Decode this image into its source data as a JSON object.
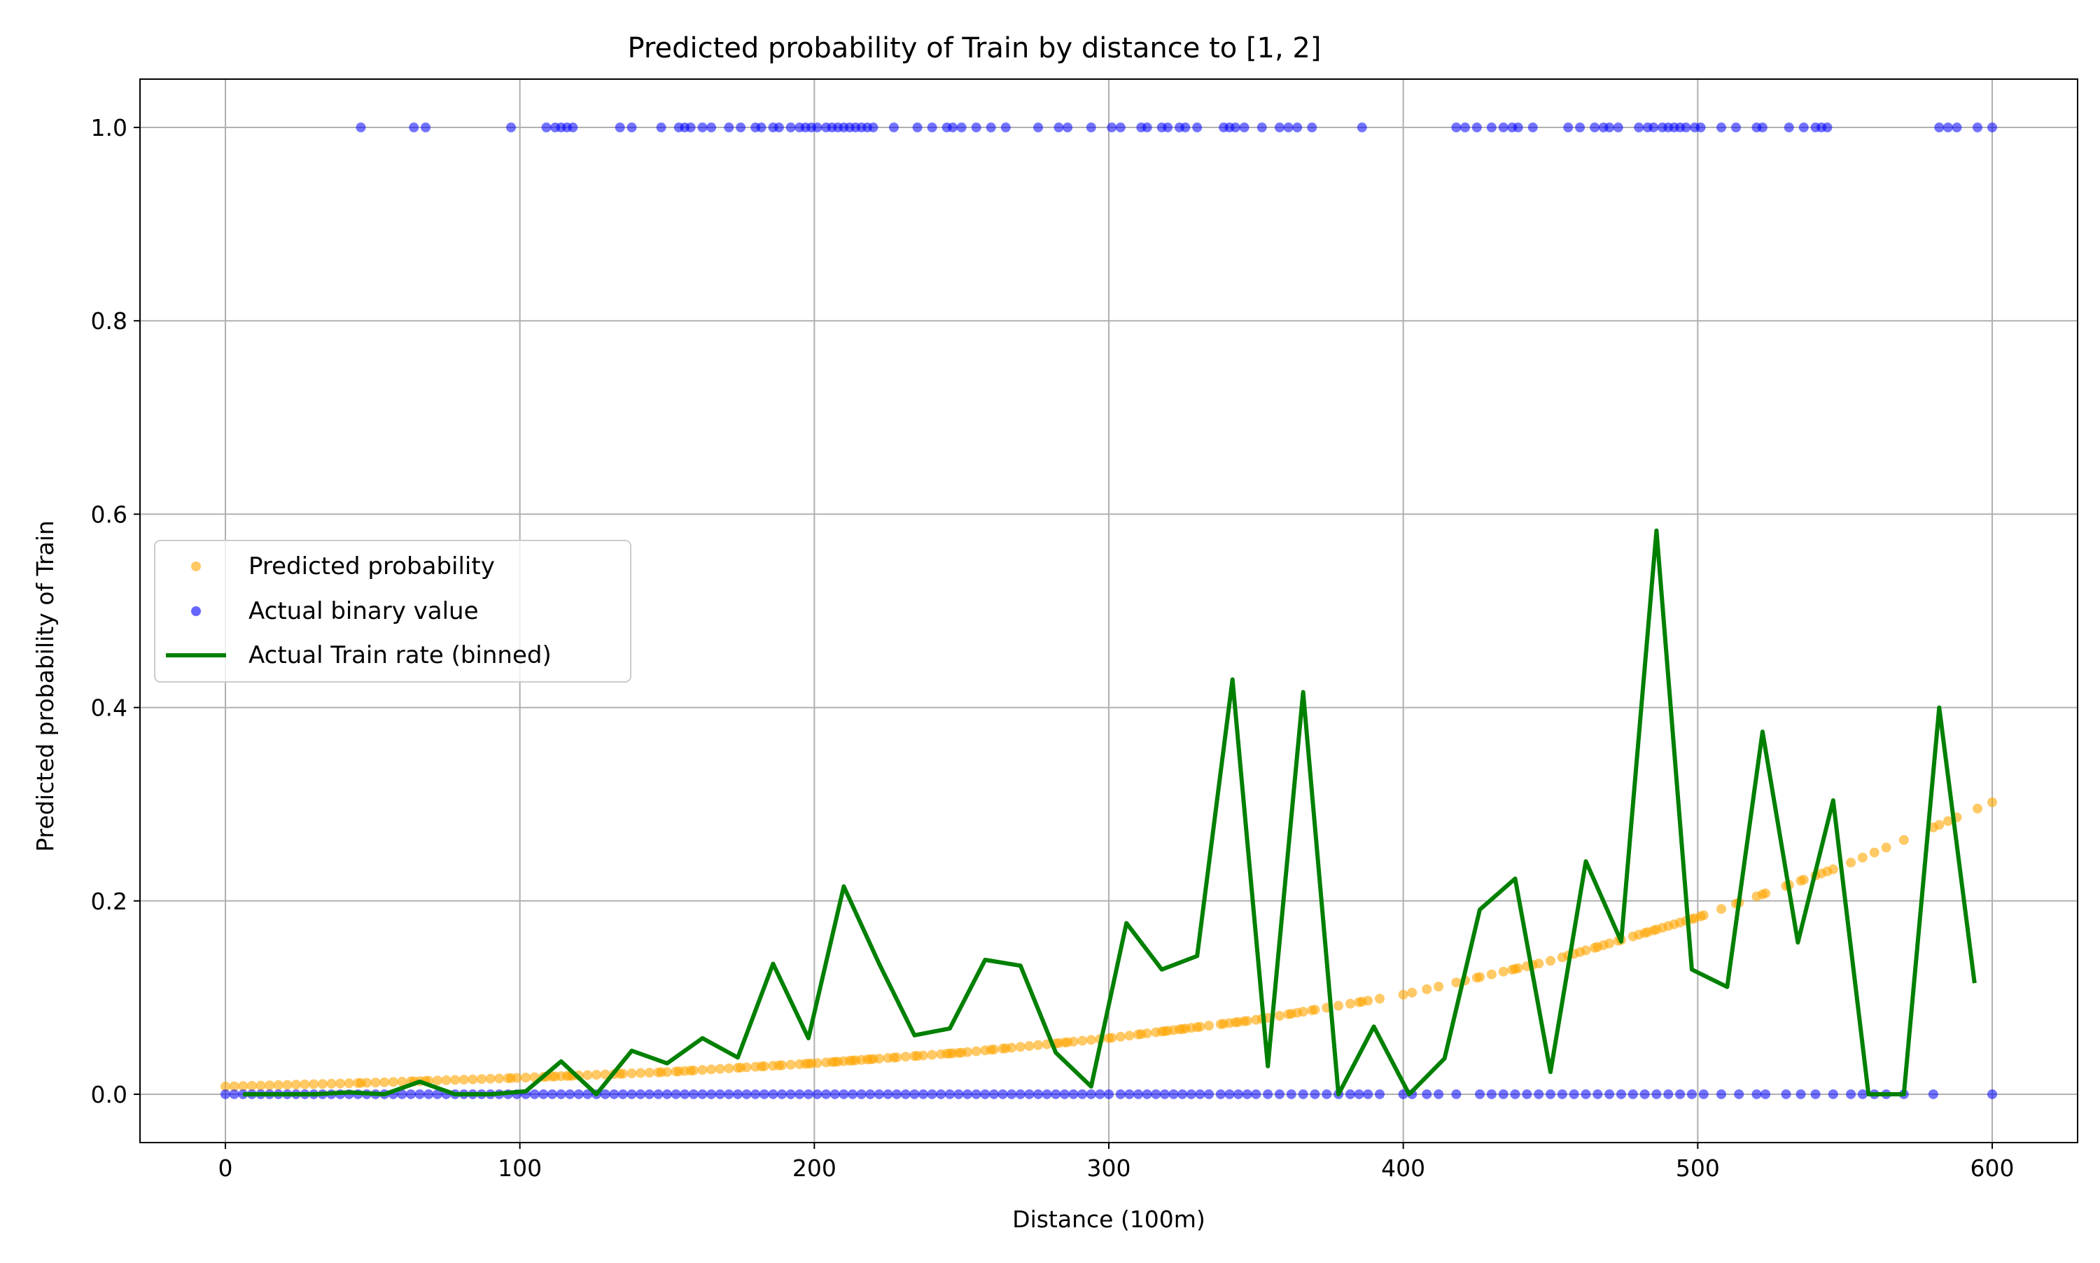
{
  "chart_data": {
    "type": "scatter",
    "title": "Predicted probability of Train by distance to [1, 2]",
    "xlabel": "Distance (100m)",
    "ylabel": "Predicted probability of Train",
    "xlim": [
      -29,
      629
    ],
    "ylim": [
      -0.05,
      1.05
    ],
    "xticks": [
      0,
      100,
      200,
      300,
      400,
      500,
      600
    ],
    "yticks": [
      0.0,
      0.2,
      0.4,
      0.6,
      0.8,
      1.0
    ],
    "xtick_labels": [
      "0",
      "100",
      "200",
      "300",
      "400",
      "500",
      "600"
    ],
    "ytick_labels": [
      "0.0",
      "0.2",
      "0.4",
      "0.6",
      "0.8",
      "1.0"
    ],
    "grid": true,
    "legend_position": "center-left",
    "legend": [
      "Predicted probability",
      "Actual binary value",
      "Actual Train rate (binned)"
    ],
    "colors": {
      "predicted": "#ffa500",
      "actual": "#0000ff",
      "binned": "#008000",
      "grid": "#b0b0b0",
      "axes": "#000000"
    },
    "predicted_curve": {
      "name": "Predicted probability",
      "x": [
        0,
        50,
        100,
        150,
        200,
        250,
        300,
        350,
        400,
        450,
        500,
        550,
        600
      ],
      "y": [
        0.008,
        0.012,
        0.017,
        0.023,
        0.032,
        0.043,
        0.058,
        0.077,
        0.103,
        0.138,
        0.183,
        0.237,
        0.302
      ]
    },
    "actual_positive_x": [
      46,
      64,
      68,
      97,
      109,
      112,
      114,
      116,
      118,
      134,
      138,
      148,
      154,
      156,
      158,
      162,
      165,
      171,
      175,
      180,
      182,
      186,
      188,
      192,
      195,
      197,
      199,
      201,
      204,
      206,
      208,
      210,
      212,
      214,
      216,
      218,
      220,
      227,
      235,
      240,
      245,
      247,
      250,
      255,
      260,
      265,
      276,
      283,
      286,
      294,
      301,
      304,
      311,
      313,
      318,
      320,
      324,
      326,
      330,
      339,
      341,
      343,
      346,
      352,
      358,
      361,
      364,
      369,
      386,
      418,
      421,
      425,
      430,
      434,
      437,
      439,
      444,
      456,
      460,
      465,
      468,
      470,
      473,
      480,
      483,
      485,
      488,
      490,
      492,
      494,
      496,
      499,
      501,
      508,
      513,
      520,
      522,
      531,
      536,
      540,
      542,
      544,
      582,
      585,
      588,
      595,
      600
    ],
    "actual_negative_x": [
      0,
      3,
      6,
      9,
      12,
      15,
      18,
      21,
      24,
      27,
      30,
      33,
      36,
      39,
      42,
      45,
      48,
      51,
      54,
      57,
      60,
      63,
      66,
      69,
      72,
      75,
      78,
      81,
      84,
      87,
      90,
      93,
      96,
      99,
      102,
      105,
      108,
      111,
      114,
      117,
      120,
      123,
      126,
      129,
      132,
      135,
      138,
      141,
      144,
      147,
      150,
      153,
      156,
      159,
      162,
      165,
      168,
      171,
      174,
      177,
      180,
      183,
      186,
      189,
      192,
      195,
      198,
      201,
      204,
      207,
      210,
      213,
      216,
      219,
      222,
      225,
      228,
      231,
      234,
      237,
      240,
      243,
      246,
      249,
      252,
      255,
      258,
      261,
      264,
      267,
      270,
      273,
      276,
      279,
      282,
      285,
      288,
      291,
      294,
      297,
      300,
      304,
      307,
      310,
      313,
      316,
      319,
      322,
      325,
      328,
      331,
      334,
      338,
      341,
      344,
      347,
      350,
      354,
      358,
      362,
      366,
      370,
      374,
      378,
      382,
      385,
      388,
      392,
      400,
      403,
      408,
      412,
      418,
      426,
      430,
      434,
      438,
      442,
      446,
      450,
      454,
      458,
      462,
      466,
      470,
      474,
      478,
      482,
      486,
      490,
      494,
      498,
      502,
      508,
      514,
      520,
      523,
      530,
      535,
      540,
      546,
      552,
      556,
      560,
      564,
      570,
      580,
      600
    ],
    "binned_rate": {
      "name": "Actual Train rate (binned)",
      "x": [
        6,
        18,
        30,
        42,
        54,
        66,
        78,
        90,
        102,
        114,
        126,
        138,
        150,
        162,
        174,
        186,
        198,
        210,
        222,
        234,
        246,
        258,
        270,
        282,
        294,
        306,
        318,
        330,
        342,
        354,
        366,
        378,
        390,
        402,
        414,
        426,
        438,
        450,
        462,
        474,
        486,
        498,
        510,
        522,
        534,
        546,
        558,
        570,
        582,
        594
      ],
      "y": [
        0.0,
        0.0,
        0.0,
        0.002,
        0.0,
        0.013,
        0.0,
        0.0,
        0.003,
        0.034,
        0.0,
        0.045,
        0.032,
        0.058,
        0.038,
        0.135,
        0.058,
        0.215,
        0.135,
        0.061,
        0.068,
        0.139,
        0.133,
        0.043,
        0.008,
        0.177,
        0.129,
        0.143,
        0.429,
        0.029,
        0.416,
        0.0,
        0.07,
        0.0,
        0.037,
        0.191,
        0.223,
        0.023,
        0.241,
        0.158,
        0.583,
        0.129,
        0.111,
        0.375,
        0.157,
        0.304,
        0.0,
        0.0,
        0.4,
        0.115
      ]
    }
  }
}
